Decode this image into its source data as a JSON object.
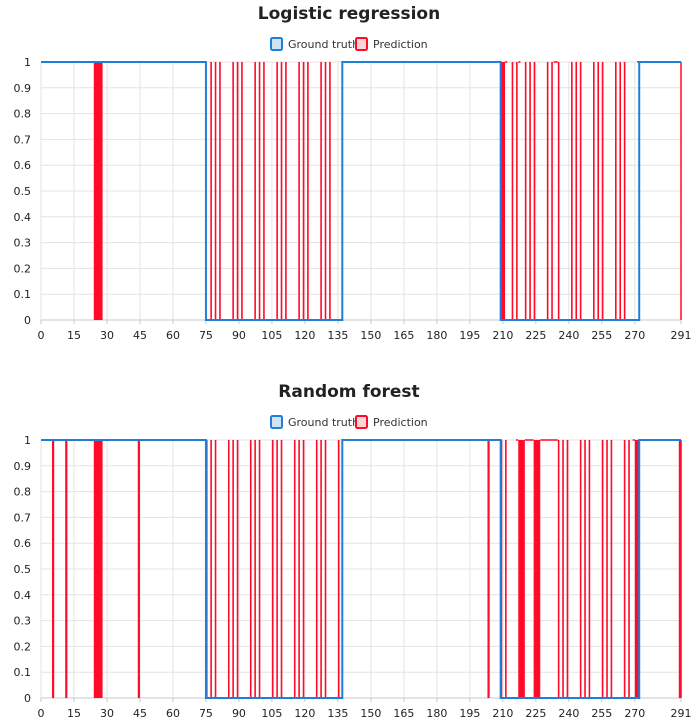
{
  "colors": {
    "ground_truth": "#1e7fd8",
    "ground_truth_fill": "#cfe3f7",
    "prediction": "#ff0a28",
    "prediction_fill": "#ffd3d8"
  },
  "chart_data": [
    {
      "type": "line",
      "title": "Logistic regression",
      "legend_position": "top-center",
      "grid": true,
      "xlim": [
        0,
        291
      ],
      "ylim": [
        0,
        1
      ],
      "x_ticks": [
        "0",
        "15",
        "30",
        "45",
        "60",
        "75",
        "90",
        "105",
        "120",
        "135",
        "150",
        "165",
        "180",
        "195",
        "210",
        "225",
        "240",
        "255",
        "270",
        "291"
      ],
      "y_ticks": [
        "0",
        "0.1",
        "0.2",
        "0.3",
        "0.4",
        "0.5",
        "0.6",
        "0.7",
        "0.8",
        "0.9",
        "1"
      ],
      "series": [
        {
          "name": "Ground truth",
          "style": "step",
          "segments": [
            [
              0,
              75,
              1
            ],
            [
              75,
              137,
              0
            ],
            [
              137,
              209,
              1
            ],
            [
              209,
              272,
              0
            ],
            [
              272,
              291,
              1
            ]
          ]
        },
        {
          "name": "Prediction",
          "style": "spikes",
          "zero_spans": [
            [
              24,
              28
            ],
            [
              75,
              137
            ],
            [
              209,
              211
            ],
            [
              212,
              217
            ],
            [
              218,
              233
            ],
            [
              235,
              271
            ]
          ]
        }
      ]
    },
    {
      "type": "line",
      "title": "Random forest",
      "legend_position": "top-center",
      "grid": true,
      "xlim": [
        0,
        291
      ],
      "ylim": [
        0,
        1
      ],
      "x_ticks": [
        "0",
        "15",
        "30",
        "45",
        "60",
        "75",
        "90",
        "105",
        "120",
        "135",
        "150",
        "165",
        "180",
        "195",
        "210",
        "225",
        "240",
        "255",
        "270",
        "291"
      ],
      "y_ticks": [
        "0",
        "0.1",
        "0.2",
        "0.3",
        "0.4",
        "0.5",
        "0.6",
        "0.7",
        "0.8",
        "0.9",
        "1"
      ],
      "series": [
        {
          "name": "Ground truth",
          "style": "step",
          "segments": [
            [
              0,
              75,
              1
            ],
            [
              75,
              137,
              0
            ],
            [
              137,
              209,
              1
            ],
            [
              209,
              272,
              0
            ],
            [
              272,
              291,
              1
            ]
          ]
        },
        {
          "name": "Prediction",
          "style": "spikes",
          "zero_spans": [
            [
              5,
              6
            ],
            [
              11,
              12
            ],
            [
              24,
              28
            ],
            [
              44,
              45
            ],
            [
              75,
              137
            ],
            [
              203,
              204
            ],
            [
              209,
              216
            ],
            [
              217,
              220
            ],
            [
              224,
              227
            ],
            [
              235,
              269
            ],
            [
              270,
              272
            ],
            [
              290,
              291
            ]
          ]
        }
      ]
    }
  ]
}
